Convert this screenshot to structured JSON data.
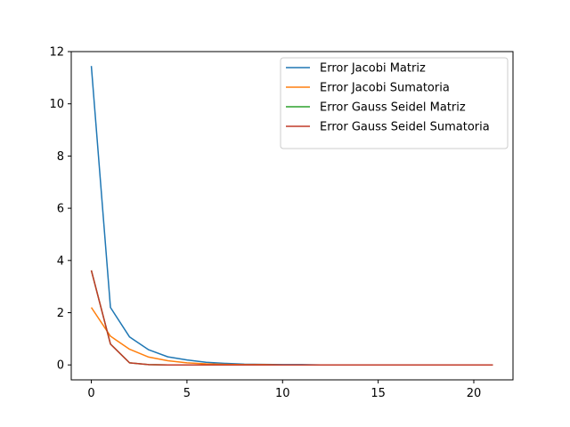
{
  "chart_data": {
    "type": "line",
    "title": "",
    "xlabel": "",
    "ylabel": "",
    "xlim": [
      -1.05,
      22.05
    ],
    "ylim": [
      -0.572,
      12.0
    ],
    "xticks": [
      0,
      5,
      10,
      15,
      20
    ],
    "yticks": [
      0,
      2,
      4,
      6,
      8,
      10,
      12
    ],
    "grid": false,
    "legend_position": "top-right",
    "x": [
      0,
      1,
      2,
      3,
      4,
      5,
      6,
      7,
      8,
      9,
      10,
      11,
      12,
      13,
      14,
      15,
      16,
      17,
      18,
      19,
      20,
      21
    ],
    "series": [
      {
        "name": "Error Jacobi Matriz",
        "color": "#1f77b4",
        "values": [
          11.45,
          2.2,
          1.07,
          0.58,
          0.31,
          0.19,
          0.1,
          0.06,
          0.03,
          0.02,
          0.01,
          0.01,
          0.0,
          0.0,
          0.0,
          0.0,
          0.0,
          0.0,
          0.0,
          0.0,
          0.0,
          0.0
        ]
      },
      {
        "name": "Error Jacobi Sumatoria",
        "color": "#ff7f0e",
        "values": [
          2.2,
          1.1,
          0.6,
          0.3,
          0.16,
          0.08,
          0.04,
          0.02,
          0.01,
          0.01,
          0.0,
          0.0,
          0.0,
          0.0,
          0.0,
          0.0,
          0.0,
          0.0,
          0.0,
          0.0,
          0.0,
          0.0
        ]
      },
      {
        "name": "Error Gauss Seidel Matriz",
        "color": "#2ca02c",
        "values": [
          3.62,
          0.8,
          0.08,
          0.01,
          0.0,
          0.0,
          0.0,
          0.0,
          0.0,
          0.0,
          0.0,
          0.0,
          0.0,
          0.0,
          0.0,
          0.0,
          0.0,
          0.0,
          0.0,
          0.0,
          0.0,
          0.0
        ]
      },
      {
        "name": "Error Gauss Seidel Sumatoria",
        "color": "#c13a28",
        "values": [
          3.62,
          0.8,
          0.08,
          0.01,
          0.0,
          0.0,
          0.0,
          0.0,
          0.0,
          0.0,
          0.0,
          0.0,
          0.0,
          0.0,
          0.0,
          0.0,
          0.0,
          0.0,
          0.0,
          0.0,
          0.0,
          0.0
        ]
      }
    ]
  }
}
